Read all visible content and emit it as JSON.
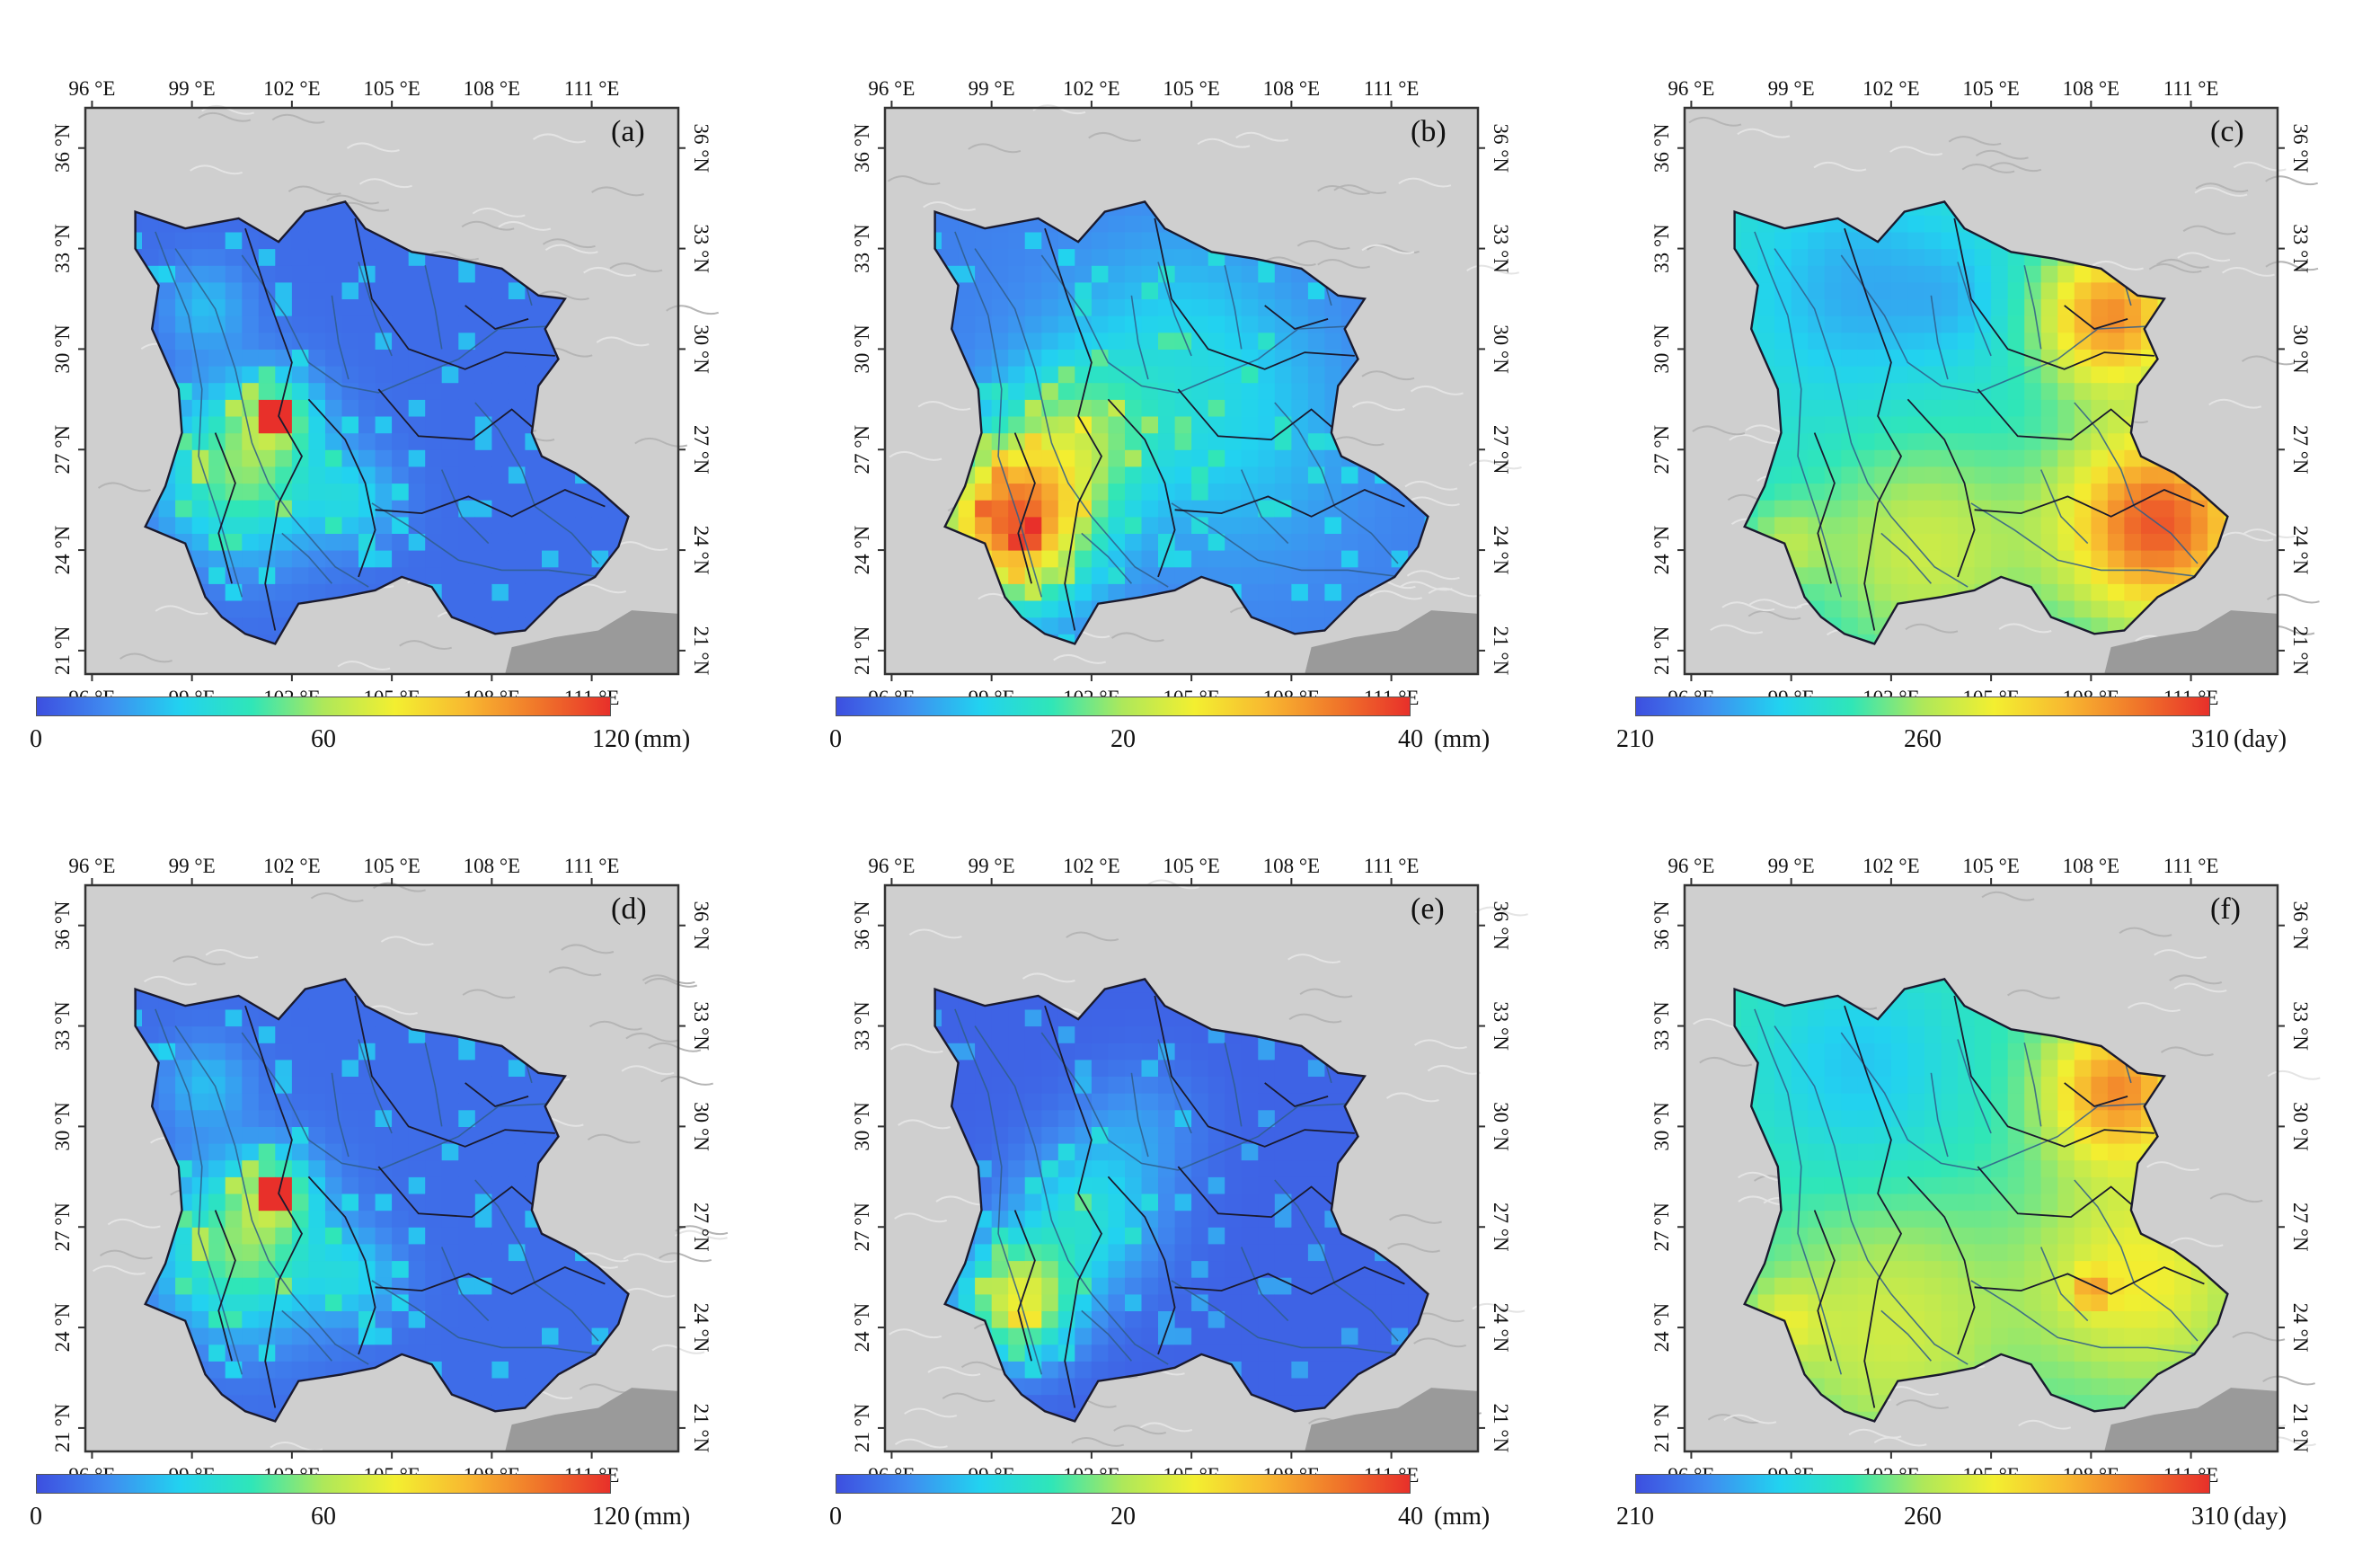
{
  "colors": {
    "frame": "#333333",
    "boundary": "#1a1a2e",
    "river": "#2f5d8a",
    "terrain": "#cfcfcf",
    "sea": "#9a9a9a",
    "colormap": [
      "#3d4fe0",
      "#3f8cf0",
      "#22d2f0",
      "#2fe6b8",
      "#aee85a",
      "#f3ef30",
      "#f8b830",
      "#f0762a",
      "#e8302a"
    ]
  },
  "axes": {
    "lon_ticks": [
      "96 °E",
      "99 °E",
      "102 °E",
      "105 °E",
      "108 °E",
      "111 °E"
    ],
    "lat_ticks": [
      "21 °N",
      "24 °N",
      "27 °N",
      "30 °N",
      "33 °N",
      "36 °N"
    ],
    "lon_range": [
      95.8,
      113.6
    ],
    "lat_range": [
      20.3,
      37.2
    ]
  },
  "panels": [
    {
      "label": "(a)",
      "theme": "a",
      "colorbar": {
        "ticks": [
          "0",
          "60",
          "120"
        ],
        "unit": "(mm)"
      }
    },
    {
      "label": "(b)",
      "theme": "b",
      "colorbar": {
        "ticks": [
          "0",
          "20",
          "40"
        ],
        "unit": "(mm)"
      }
    },
    {
      "label": "(c)",
      "theme": "c",
      "colorbar": {
        "ticks": [
          "210",
          "260",
          "310"
        ],
        "unit": "(day)"
      }
    },
    {
      "label": "(d)",
      "theme": "a",
      "colorbar": {
        "ticks": [
          "0",
          "60",
          "120"
        ],
        "unit": "(mm)"
      }
    },
    {
      "label": "(e)",
      "theme": "e",
      "colorbar": {
        "ticks": [
          "0",
          "20",
          "40"
        ],
        "unit": "(mm)"
      }
    },
    {
      "label": "(f)",
      "theme": "f",
      "colorbar": {
        "ticks": [
          "210",
          "260",
          "310"
        ],
        "unit": "(day)"
      }
    }
  ]
}
